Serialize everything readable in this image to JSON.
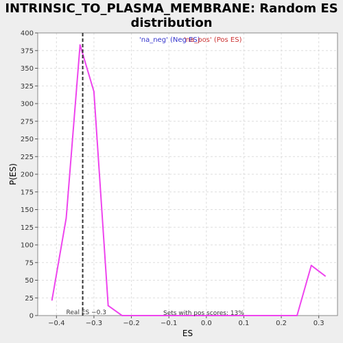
{
  "chart_data": {
    "type": "line",
    "title": "INTRINSIC_TO_PLASMA_MEMBRANE: Random ES distribution",
    "xlabel": "ES",
    "ylabel": "P(ES)",
    "xlim": [
      -0.45,
      0.35
    ],
    "ylim": [
      0,
      400
    ],
    "xticks": [
      -0.4,
      -0.3,
      -0.2,
      -0.1,
      0.0,
      0.1,
      0.2,
      0.3
    ],
    "xtick_labels": [
      "−0.4",
      "−0.3",
      "−0.2",
      "−0.1",
      "0.0",
      "0.1",
      "0.2",
      "0.3"
    ],
    "yticks": [
      0,
      25,
      50,
      75,
      100,
      125,
      150,
      175,
      200,
      225,
      250,
      275,
      300,
      325,
      350,
      375,
      400
    ],
    "grid": true,
    "series": [
      {
        "color": "#ee44ee",
        "x": [
          -0.412,
          -0.374,
          -0.337,
          -0.3,
          -0.262,
          -0.225,
          -0.15,
          -0.075,
          0.0,
          0.1,
          0.2,
          0.242,
          0.28,
          0.317
        ],
        "y": [
          22,
          138,
          383,
          317,
          14,
          0,
          0,
          0,
          0,
          0,
          0,
          0,
          71,
          56
        ]
      }
    ],
    "real_es": -0.33,
    "annotations": {
      "real_es_label": "Real ES −0.3",
      "pos_scores_label": "Sets with pos scores: 13%"
    },
    "legend": {
      "placement": "top-center",
      "neg_label": "'na_neg' (Neg ES)",
      "neg_color": "#3333cc",
      "pos_label": "'na_pos' (Pos ES)",
      "pos_color": "#cc3333"
    },
    "colors": {
      "plot_background": "#ffffff",
      "page_background": "#eeeeee",
      "grid": "#dddddd",
      "real_es_line": "#333333"
    }
  }
}
